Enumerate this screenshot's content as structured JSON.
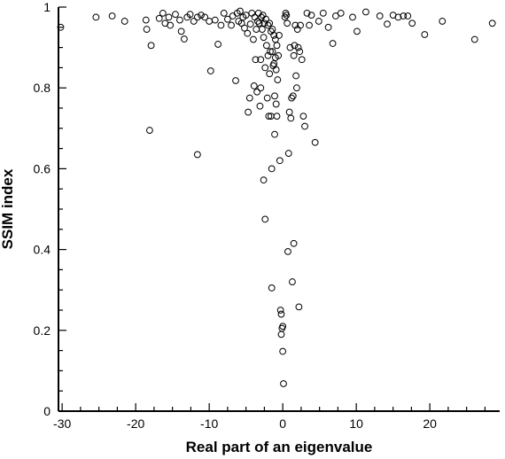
{
  "chart_data": {
    "type": "scatter",
    "title": "",
    "xlabel": "Real part of an eigenvalue",
    "ylabel": "SSIM index",
    "xlim": [
      -30.5,
      29.5
    ],
    "ylim": [
      0,
      1
    ],
    "grid": false,
    "marker": "open-circle",
    "marker_color": "#000000",
    "x_ticks": [
      -30,
      -20,
      -10,
      0,
      10,
      20
    ],
    "x_tick_labels": [
      "-30",
      "-20",
      "-10",
      "0",
      "10",
      "20"
    ],
    "y_ticks": [
      0,
      0.2,
      0.4,
      0.6,
      0.8,
      1
    ],
    "y_tick_labels": [
      "0",
      "0.2",
      "0.4",
      "0.6",
      "0.8",
      "1"
    ],
    "series": [
      {
        "points": [
          [
            -30.2,
            0.95
          ],
          [
            -25.4,
            0.975
          ],
          [
            -23.2,
            0.978
          ],
          [
            -21.5,
            0.965
          ],
          [
            -18.6,
            0.968
          ],
          [
            -18.5,
            0.945
          ],
          [
            -17.9,
            0.905
          ],
          [
            -18.1,
            0.695
          ],
          [
            -16.8,
            0.972
          ],
          [
            -16.3,
            0.985
          ],
          [
            -16.0,
            0.96
          ],
          [
            -15.5,
            0.975
          ],
          [
            -15.3,
            0.955
          ],
          [
            -14.6,
            0.982
          ],
          [
            -14.0,
            0.968
          ],
          [
            -13.8,
            0.94
          ],
          [
            -13.4,
            0.921
          ],
          [
            -13.0,
            0.975
          ],
          [
            -12.6,
            0.982
          ],
          [
            -12.1,
            0.965
          ],
          [
            -11.6,
            0.975
          ],
          [
            -11.1,
            0.98
          ],
          [
            -10.6,
            0.975
          ],
          [
            -10.0,
            0.965
          ],
          [
            -11.6,
            0.635
          ],
          [
            -9.8,
            0.842
          ],
          [
            -9.2,
            0.968
          ],
          [
            -8.8,
            0.908
          ],
          [
            -8.4,
            0.955
          ],
          [
            -8.0,
            0.985
          ],
          [
            -7.5,
            0.97
          ],
          [
            -7.0,
            0.955
          ],
          [
            -6.8,
            0.978
          ],
          [
            -6.4,
            0.818
          ],
          [
            -6.2,
            0.985
          ],
          [
            -6.0,
            0.965
          ],
          [
            -5.8,
            0.99
          ],
          [
            -5.6,
            0.96
          ],
          [
            -5.4,
            0.975
          ],
          [
            -5.2,
            0.948
          ],
          [
            -5.0,
            0.98
          ],
          [
            -4.8,
            0.935
          ],
          [
            -4.7,
            0.74
          ],
          [
            -4.5,
            0.775
          ],
          [
            -4.4,
            0.958
          ],
          [
            -4.2,
            0.985
          ],
          [
            -4.0,
            0.92
          ],
          [
            -3.9,
            0.805
          ],
          [
            -3.8,
            0.975
          ],
          [
            -3.7,
            0.87
          ],
          [
            -3.6,
            0.945
          ],
          [
            -3.5,
            0.79
          ],
          [
            -3.4,
            0.965
          ],
          [
            -3.3,
            0.985
          ],
          [
            -3.2,
            0.96
          ],
          [
            -3.1,
            0.755
          ],
          [
            -3.0,
            0.8
          ],
          [
            -3.0,
            0.87
          ],
          [
            -2.9,
            0.975
          ],
          [
            -2.8,
            0.945
          ],
          [
            -2.7,
            0.98
          ],
          [
            -2.6,
            0.572
          ],
          [
            -2.6,
            0.925
          ],
          [
            -2.5,
            0.96
          ],
          [
            -2.4,
            0.475
          ],
          [
            -2.4,
            0.85
          ],
          [
            -2.3,
            0.97
          ],
          [
            -2.2,
            0.905
          ],
          [
            -2.1,
            0.775
          ],
          [
            -2.0,
            0.955
          ],
          [
            -2.0,
            0.88
          ],
          [
            -1.9,
            0.73
          ],
          [
            -1.8,
            0.96
          ],
          [
            -1.8,
            0.835
          ],
          [
            -1.7,
            0.89
          ],
          [
            -1.6,
            0.94
          ],
          [
            -1.6,
            0.73
          ],
          [
            -1.5,
            0.6
          ],
          [
            -1.5,
            0.305
          ],
          [
            -1.4,
            0.945
          ],
          [
            -1.4,
            0.89
          ],
          [
            -1.3,
            0.855
          ],
          [
            -1.2,
            0.93
          ],
          [
            -1.2,
            0.86
          ],
          [
            -1.1,
            0.78
          ],
          [
            -1.1,
            0.685
          ],
          [
            -1.0,
            0.92
          ],
          [
            -1.0,
            0.875
          ],
          [
            -0.9,
            0.845
          ],
          [
            -0.9,
            0.76
          ],
          [
            -0.8,
            0.905
          ],
          [
            -0.8,
            0.73
          ],
          [
            -0.7,
            0.82
          ],
          [
            -0.6,
            0.88
          ],
          [
            -0.5,
            0.93
          ],
          [
            -0.4,
            0.62
          ],
          [
            -0.3,
            0.25
          ],
          [
            -0.2,
            0.24
          ],
          [
            -0.2,
            0.19
          ],
          [
            -0.1,
            0.205
          ],
          [
            0.0,
            0.21
          ],
          [
            0.0,
            0.148
          ],
          [
            0.1,
            0.068
          ],
          [
            0.3,
            0.975
          ],
          [
            0.4,
            0.985
          ],
          [
            0.5,
            0.98
          ],
          [
            0.6,
            0.96
          ],
          [
            0.7,
            0.395
          ],
          [
            0.8,
            0.638
          ],
          [
            0.9,
            0.74
          ],
          [
            1.0,
            0.9
          ],
          [
            1.1,
            0.725
          ],
          [
            1.2,
            0.775
          ],
          [
            1.3,
            0.32
          ],
          [
            1.4,
            0.78
          ],
          [
            1.5,
            0.415
          ],
          [
            1.5,
            0.88
          ],
          [
            1.6,
            0.905
          ],
          [
            1.7,
            0.955
          ],
          [
            1.8,
            0.83
          ],
          [
            1.9,
            0.8
          ],
          [
            2.0,
            0.945
          ],
          [
            2.1,
            0.9
          ],
          [
            2.2,
            0.258
          ],
          [
            2.3,
            0.89
          ],
          [
            2.4,
            0.955
          ],
          [
            2.6,
            0.87
          ],
          [
            2.8,
            0.73
          ],
          [
            3.0,
            0.705
          ],
          [
            3.3,
            0.985
          ],
          [
            3.6,
            0.955
          ],
          [
            3.9,
            0.98
          ],
          [
            4.4,
            0.665
          ],
          [
            4.9,
            0.965
          ],
          [
            5.5,
            0.985
          ],
          [
            6.2,
            0.95
          ],
          [
            6.8,
            0.91
          ],
          [
            7.2,
            0.978
          ],
          [
            7.9,
            0.985
          ],
          [
            9.5,
            0.975
          ],
          [
            10.1,
            0.94
          ],
          [
            11.3,
            0.988
          ],
          [
            13.2,
            0.978
          ],
          [
            14.2,
            0.958
          ],
          [
            15.0,
            0.98
          ],
          [
            15.7,
            0.975
          ],
          [
            16.4,
            0.978
          ],
          [
            17.0,
            0.978
          ],
          [
            17.6,
            0.96
          ],
          [
            19.3,
            0.932
          ],
          [
            21.7,
            0.965
          ],
          [
            26.1,
            0.92
          ],
          [
            28.5,
            0.96
          ]
        ]
      }
    ]
  }
}
